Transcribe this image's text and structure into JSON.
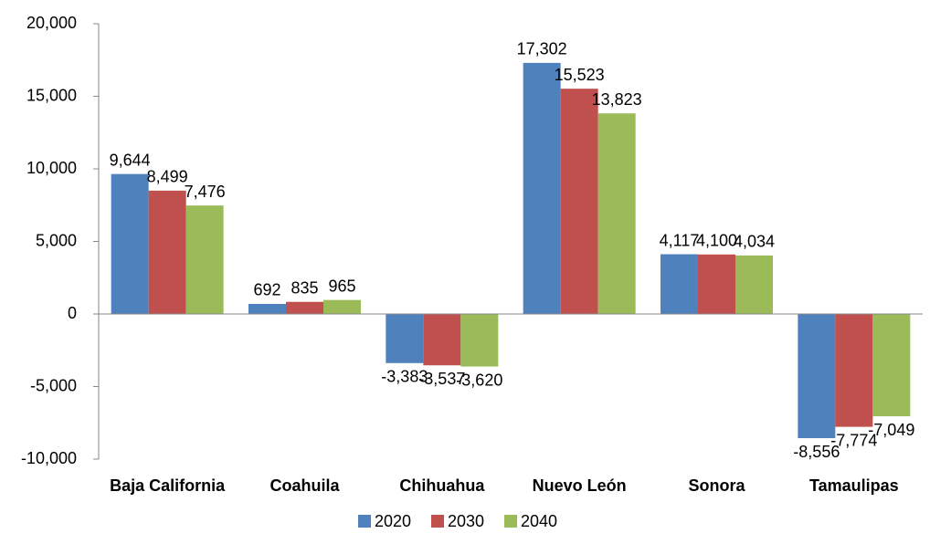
{
  "chart_data": {
    "type": "bar",
    "categories": [
      "Baja California",
      "Coahuila",
      "Chihuahua",
      "Nuevo León",
      "Sonora",
      "Tamaulipas"
    ],
    "series": [
      {
        "name": "2020",
        "color": "#4f81bd",
        "values": [
          9644,
          692,
          -3383,
          17302,
          4117,
          -8556
        ],
        "value_labels": [
          "9,644",
          "692",
          "-3,383",
          "17,302",
          "4,117",
          "-8,556"
        ]
      },
      {
        "name": "2030",
        "color": "#c0504d",
        "values": [
          8499,
          835,
          -3537,
          15523,
          4100,
          -7774
        ],
        "value_labels": [
          "8,499",
          "835",
          "-3,537",
          "15,523",
          "4,100",
          "-7,774"
        ]
      },
      {
        "name": "2040",
        "color": "#9bbb59",
        "values": [
          7476,
          965,
          -3620,
          13823,
          4034,
          -7049
        ],
        "value_labels": [
          "7,476",
          "965",
          "-3,620",
          "13,823",
          "4,034",
          "-7,049"
        ]
      }
    ],
    "ylim": [
      -10000,
      20000
    ],
    "yticks": [
      {
        "value": -10000,
        "label": "-10,000"
      },
      {
        "value": -5000,
        "label": "-5,000"
      },
      0,
      {
        "value": 5000,
        "label": "5,000"
      },
      {
        "value": 10000,
        "label": "10,000"
      },
      {
        "value": 15000,
        "label": "15,000"
      },
      {
        "value": 20000,
        "label": "20,000"
      }
    ],
    "legend": "bottom"
  }
}
